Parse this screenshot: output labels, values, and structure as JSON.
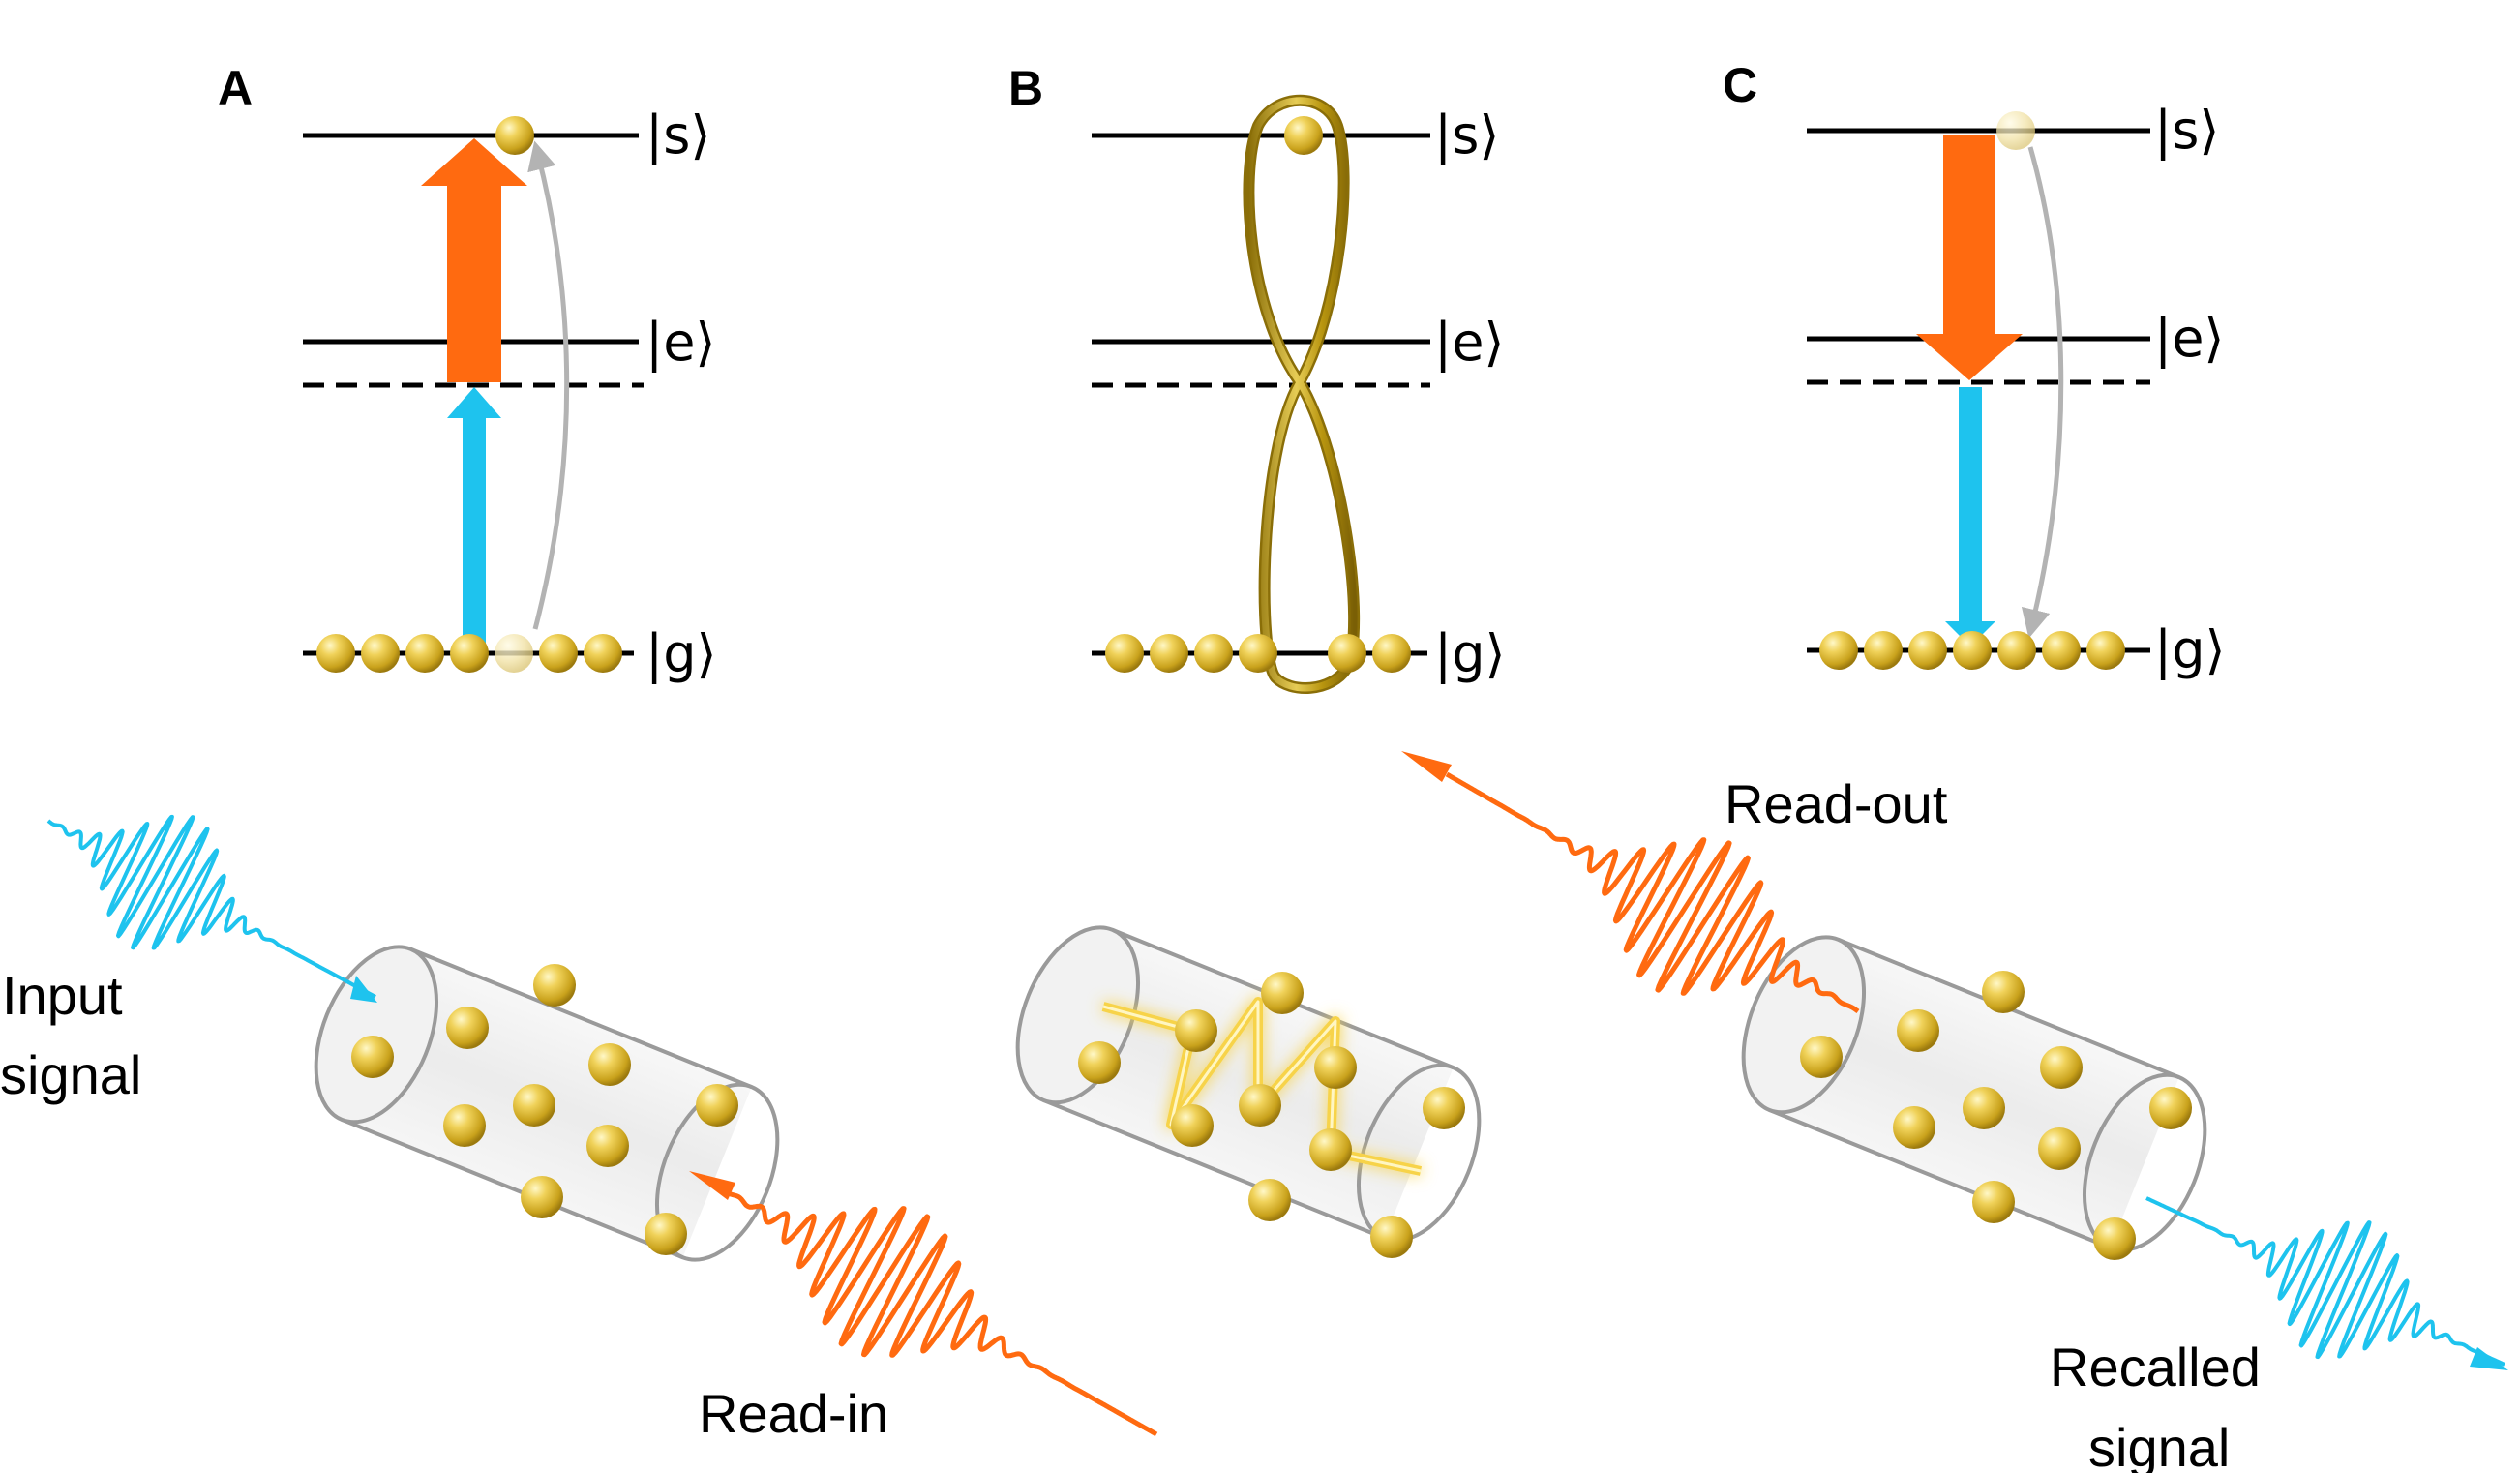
{
  "panels": [
    {
      "id": "A",
      "levels": {
        "s": "|s⟩",
        "e": "|e⟩",
        "g": "|g⟩"
      }
    },
    {
      "id": "B",
      "levels": {
        "s": "|s⟩",
        "e": "|e⟩",
        "g": "|g⟩"
      }
    },
    {
      "id": "C",
      "levels": {
        "s": "|s⟩",
        "e": "|e⟩",
        "g": "|g⟩"
      }
    }
  ],
  "captions": {
    "input_signal_line1": "Input",
    "input_signal_line2": "signal",
    "read_in": "Read-in",
    "read_out": "Read-out",
    "recalled_line1": "Recalled",
    "recalled_line2": "signal"
  },
  "colors": {
    "pump_orange": "#ff6a10",
    "signal_blue": "#1ec3ee",
    "atom_gold": "#d9b530",
    "transition_gray": "#b3b3b3",
    "level_line": "#000000"
  }
}
